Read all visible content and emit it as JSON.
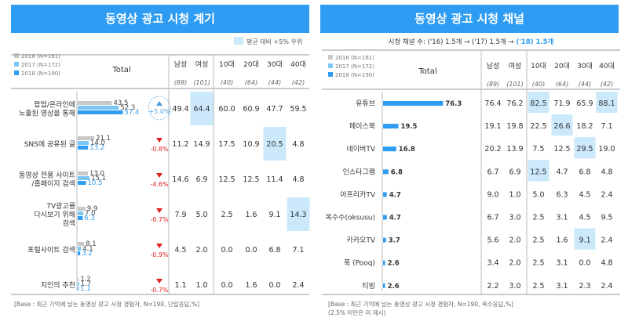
{
  "colors": {
    "accent": "#2d9cf2",
    "s2016": "#c8c8c8",
    "s2017": "#7cc6f6",
    "s2018": "#2d9cf2",
    "highlight": "#cbe9fb",
    "down": "#e02020",
    "up": "#4a9fe0"
  },
  "left": {
    "title": "동영상 광고 시청 계기",
    "highlight_legend": "평균 대비 +5% 우위",
    "total_label": "Total",
    "columns": [
      "남성",
      "여성",
      "10대",
      "20대",
      "30대",
      "40대"
    ],
    "bases": [
      "(89)",
      "(101)",
      "(40)",
      "(64)",
      "(44)",
      "(42)"
    ],
    "footer": "[Base : 최근 기억에 남는 동영상 광고 시청 경험자, N=190, 단일응답,%]"
  },
  "right": {
    "title": "동영상 광고 시청 채널",
    "subtitle_prefix": "시청 채널 수: ('16) 1.5개 → ('17) 1.5개 → ",
    "subtitle_highlight": "('18) 1.5개",
    "total_label": "Total",
    "columns": [
      "남성",
      "여성",
      "10대",
      "20대",
      "30대",
      "40대"
    ],
    "bases": [
      "(89)",
      "(101)",
      "(40)",
      "(64)",
      "(44)",
      "(42)"
    ],
    "footer": "[Base : 최근 기억에 남는 동영상 광고 시청 경험자, N=190, 복수응답,%]",
    "footnote": "(2.5% 미만은 미 제시)"
  },
  "chart_data": [
    {
      "type": "bar",
      "title": "동영상 광고 시청 계기",
      "legend": [
        "2016 (N=161)",
        "2017 (N=172)",
        "2018 (N=190)"
      ],
      "categories": [
        "팝업/온라인에\n노출된 영상을 통해",
        "SNS에 공유된 글",
        "동영상 전용 사이트\n/홈페이지 검색",
        "TV광고를\n다시보기 위해\n검색",
        "포털사이트 검색",
        "지인의 추천"
      ],
      "series": [
        {
          "name": "2016 (N=161)",
          "values": [
            43.5,
            21.1,
            13.0,
            9.9,
            8.1,
            1.2
          ]
        },
        {
          "name": "2017 (N=172)",
          "values": [
            52.3,
            14.0,
            15.1,
            7.0,
            4.1,
            1.7
          ]
        },
        {
          "name": "2018 (N=190)",
          "values": [
            57.4,
            13.2,
            10.5,
            6.3,
            3.2,
            1.1
          ]
        }
      ],
      "change": [
        "+5.0%",
        "-0.8%",
        "-4.6%",
        "-0.7%",
        "-0.9%",
        "-0.7%"
      ],
      "change_dir": [
        "up",
        "down",
        "down",
        "down",
        "down",
        "down"
      ],
      "table": [
        [
          49.4,
          64.4,
          60.0,
          60.9,
          47.7,
          59.5
        ],
        [
          11.2,
          14.9,
          17.5,
          10.9,
          20.5,
          4.8
        ],
        [
          14.6,
          6.9,
          12.5,
          12.5,
          11.4,
          4.8
        ],
        [
          7.9,
          5.0,
          2.5,
          1.6,
          9.1,
          14.3
        ],
        [
          4.5,
          2.0,
          0.0,
          0.0,
          6.8,
          7.1
        ],
        [
          1.1,
          1.0,
          0.0,
          1.6,
          0.0,
          2.4
        ]
      ],
      "highlighted": [
        [
          0,
          1
        ],
        [
          1,
          4
        ],
        [
          3,
          5
        ]
      ]
    },
    {
      "type": "bar",
      "title": "동영상 광고 시청 채널",
      "legend": [
        "2016 (N=161)",
        "2017 (N=172)",
        "2018 (N=190)"
      ],
      "categories": [
        "유튜브",
        "페이스북",
        "네이버TV",
        "인스타그램",
        "아프리카TV",
        "옥수수(oksusu)",
        "카카오TV",
        "푹 (Pooq)",
        "티빙"
      ],
      "series": [
        {
          "name": "2018 (N=190)",
          "values": [
            76.3,
            19.5,
            16.8,
            6.8,
            4.7,
            4.7,
            3.7,
            2.6,
            2.6
          ]
        }
      ],
      "table": [
        [
          76.4,
          76.2,
          82.5,
          71.9,
          65.9,
          88.1
        ],
        [
          19.1,
          19.8,
          22.5,
          26.6,
          18.2,
          7.1
        ],
        [
          20.2,
          13.9,
          7.5,
          12.5,
          29.5,
          19.0
        ],
        [
          6.7,
          6.9,
          12.5,
          4.7,
          6.8,
          4.8
        ],
        [
          9.0,
          1.0,
          5.0,
          6.3,
          4.5,
          2.4
        ],
        [
          6.7,
          3.0,
          2.5,
          3.1,
          4.5,
          9.5
        ],
        [
          5.6,
          2.0,
          2.5,
          1.6,
          9.1,
          2.4
        ],
        [
          3.4,
          2.0,
          2.5,
          3.1,
          0.0,
          4.8
        ],
        [
          2.2,
          3.0,
          2.5,
          3.1,
          2.3,
          2.4
        ]
      ],
      "highlighted": [
        [
          0,
          2
        ],
        [
          0,
          5
        ],
        [
          1,
          3
        ],
        [
          2,
          4
        ],
        [
          3,
          2
        ],
        [
          6,
          4
        ]
      ]
    }
  ]
}
